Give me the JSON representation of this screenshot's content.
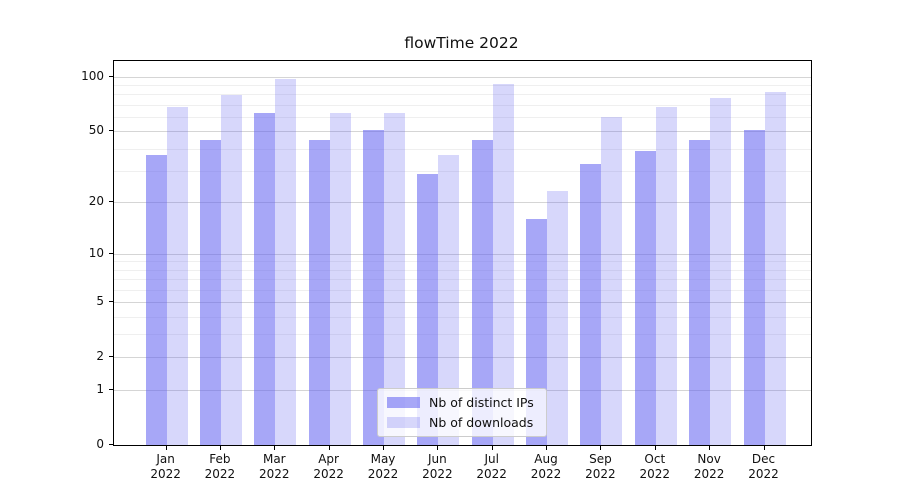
{
  "chart_data": {
    "type": "bar",
    "title": "flowTime 2022",
    "categories": [
      "Jan",
      "Feb",
      "Mar",
      "Apr",
      "May",
      "Jun",
      "Jul",
      "Aug",
      "Sep",
      "Oct",
      "Nov",
      "Dec"
    ],
    "year": "2022",
    "series": [
      {
        "name": "Nb of distinct IPs",
        "color": "rgba(95,95,240,0.55)",
        "values": [
          37,
          45,
          63,
          45,
          51,
          29,
          45,
          16,
          33,
          39,
          45,
          51
        ]
      },
      {
        "name": "Nb of downloads",
        "color": "rgba(95,95,240,0.25)",
        "values": [
          68,
          79,
          97,
          63,
          63,
          37,
          91,
          23,
          60,
          68,
          76,
          82
        ]
      }
    ],
    "xlabel": "",
    "ylabel": "",
    "yscale": "symlog-ln(1+y)",
    "yticks": [
      0,
      1,
      2,
      5,
      10,
      20,
      50,
      100
    ],
    "minor_yticks": [
      3,
      4,
      6,
      7,
      8,
      9,
      30,
      40,
      60,
      70,
      80,
      90
    ],
    "ylim": [
      0,
      122
    ],
    "grid": "on",
    "legend_position": "lower center",
    "colors": {
      "major_grid": "#d5d5d5",
      "minor_grid": "#efefef",
      "spine": "#000000",
      "background": "#ffffff"
    }
  }
}
